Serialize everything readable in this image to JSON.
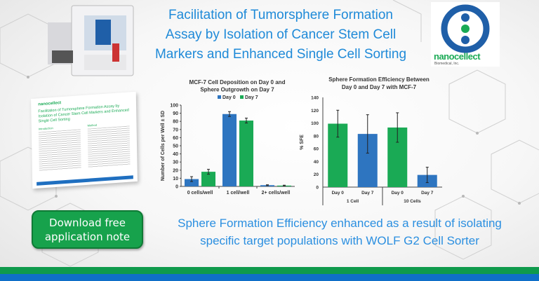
{
  "header": {
    "title_lines": [
      "Facilitation of Tumorsphere Formation",
      "Assay by Isolation of Cancer Stem Cell",
      "Markers and Enhanced Single Cell Sorting"
    ]
  },
  "logo": {
    "text": "nanocellect",
    "subtext": "Biomedical, Inc."
  },
  "brochure": {
    "brand": "nanocellect",
    "title": "Facilitation of Tumorsphere Formation Assay by Isolation of Cancer Stem Cell Markers and Enhanced Single Cell Sorting",
    "section1": "Introduction",
    "section2": "Method"
  },
  "cta": {
    "line1": "Download free",
    "line2": "application note"
  },
  "tagline": {
    "line1": "Sphere Formation Efficiency enhanced as a result of isolating",
    "line2": "specific target populations with WOLF G2 Cell Sorter"
  },
  "colors": {
    "blue": "#2e75c0",
    "green": "#1aaa55",
    "title": "#1f8ad8"
  },
  "chart_data": [
    {
      "type": "bar",
      "title": [
        "MCF-7 Cell Deposition on Day 0 and",
        "Sphere Outgrowth on  Day 7"
      ],
      "ylabel": "Number of Cells per Well ± SD",
      "ylim": [
        0,
        100
      ],
      "yticks": [
        0,
        10,
        20,
        30,
        40,
        50,
        60,
        70,
        80,
        90,
        100
      ],
      "categories": [
        "0 cells/well",
        "1 cell/well",
        "2+ cells/well"
      ],
      "legend": "top",
      "series": [
        {
          "name": "Day 0",
          "color": "#2e75c0",
          "values": [
            9,
            89,
            1.5
          ],
          "errors": [
            3,
            3,
            0.5
          ]
        },
        {
          "name": "Day 7",
          "color": "#1aaa55",
          "values": [
            18,
            81,
            1
          ],
          "errors": [
            3,
            3,
            0.5
          ]
        }
      ]
    },
    {
      "type": "bar",
      "title": [
        "Sphere Formation Efficiency Between",
        "Day 0 and Day 7 with MCF-7"
      ],
      "ylabel": "% SFE",
      "ylim": [
        0,
        140
      ],
      "yticks": [
        0,
        20,
        40,
        60,
        80,
        100,
        120,
        140
      ],
      "categories": [
        "Day 0",
        "Day 7",
        "Day 0",
        "Day 7"
      ],
      "groups": [
        "1 Cell",
        "10 Cells"
      ],
      "values": [
        99,
        83,
        93,
        19
      ],
      "errors": [
        21,
        30,
        23,
        12
      ],
      "colors": [
        "#1aaa55",
        "#2e75c0",
        "#1aaa55",
        "#2e75c0"
      ]
    }
  ]
}
